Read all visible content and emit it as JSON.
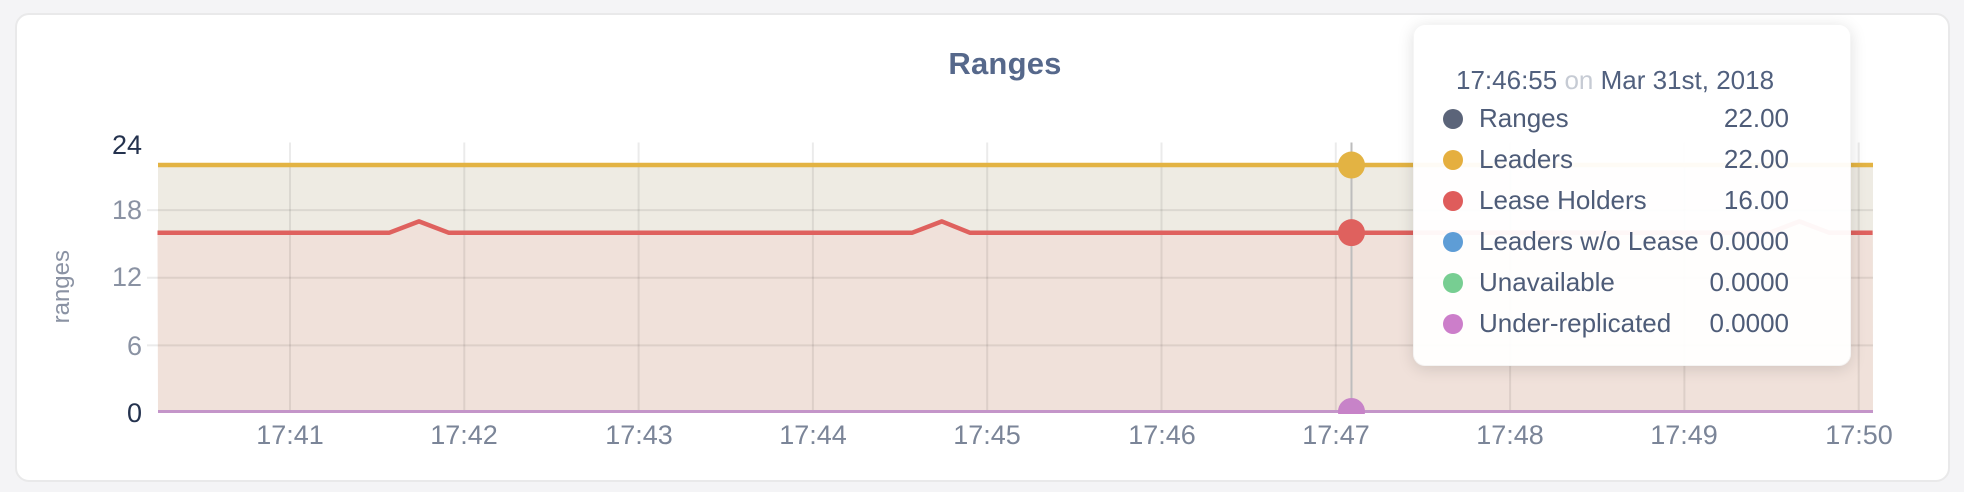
{
  "chart_data": {
    "type": "area",
    "title": "Ranges",
    "ylabel": "ranges",
    "ylim": [
      0,
      24
    ],
    "y_ticks": [
      "24",
      "18",
      "12",
      "6",
      "0"
    ],
    "grid_y_values": [
      18,
      12,
      6
    ],
    "x_ticks": [
      "17:41",
      "17:42",
      "17:43",
      "17:44",
      "17:45",
      "17:46",
      "17:47",
      "17:48",
      "17:49",
      "17:50"
    ],
    "series": [
      {
        "name": "Ranges",
        "color": "#5b6479",
        "value": 22
      },
      {
        "name": "Leaders",
        "color": "#e3b343",
        "value": 22
      },
      {
        "name": "Lease Holders",
        "color": "#df615e",
        "value": 16,
        "points": [
          [
            -0.76,
            16
          ],
          [
            0.57,
            16
          ],
          [
            0.74,
            17
          ],
          [
            0.91,
            16
          ],
          [
            3.57,
            16
          ],
          [
            3.74,
            17
          ],
          [
            3.9,
            16
          ],
          [
            8.49,
            16
          ],
          [
            8.66,
            17
          ],
          [
            8.83,
            16
          ],
          [
            9.08,
            16
          ]
        ]
      },
      {
        "name": "Leaders w/o Lease",
        "color": "#5e9dd6",
        "value": 0
      },
      {
        "name": "Unavailable",
        "color": "#77ce92",
        "value": 0
      },
      {
        "name": "Under-replicated",
        "color": "#c783c8",
        "value": 0
      }
    ],
    "hover_t": 6.09,
    "colors": {
      "fill_upper": "#eeebe3",
      "fill_lower": "#f0e1da",
      "grid": "rgba(0,0,0,0.08)",
      "hover_line": "#bdbdbd",
      "zero_line": "#c495c9"
    },
    "legend_position": "tooltip"
  },
  "tooltip": {
    "time": "17:46:55",
    "on_word": "on",
    "date": "Mar 31st, 2018",
    "rows": [
      {
        "label": "Ranges",
        "value": "22.00",
        "color": "#5b6479"
      },
      {
        "label": "Leaders",
        "value": "22.00",
        "color": "#e5af3f"
      },
      {
        "label": "Lease Holders",
        "value": "16.00",
        "color": "#df5c5b"
      },
      {
        "label": "Leaders w/o Lease",
        "value": "0.0000",
        "color": "#5e9dd6"
      },
      {
        "label": "Unavailable",
        "value": "0.0000",
        "color": "#77ce92"
      },
      {
        "label": "Under-replicated",
        "value": "0.0000",
        "color": "#cc7eca"
      }
    ]
  }
}
